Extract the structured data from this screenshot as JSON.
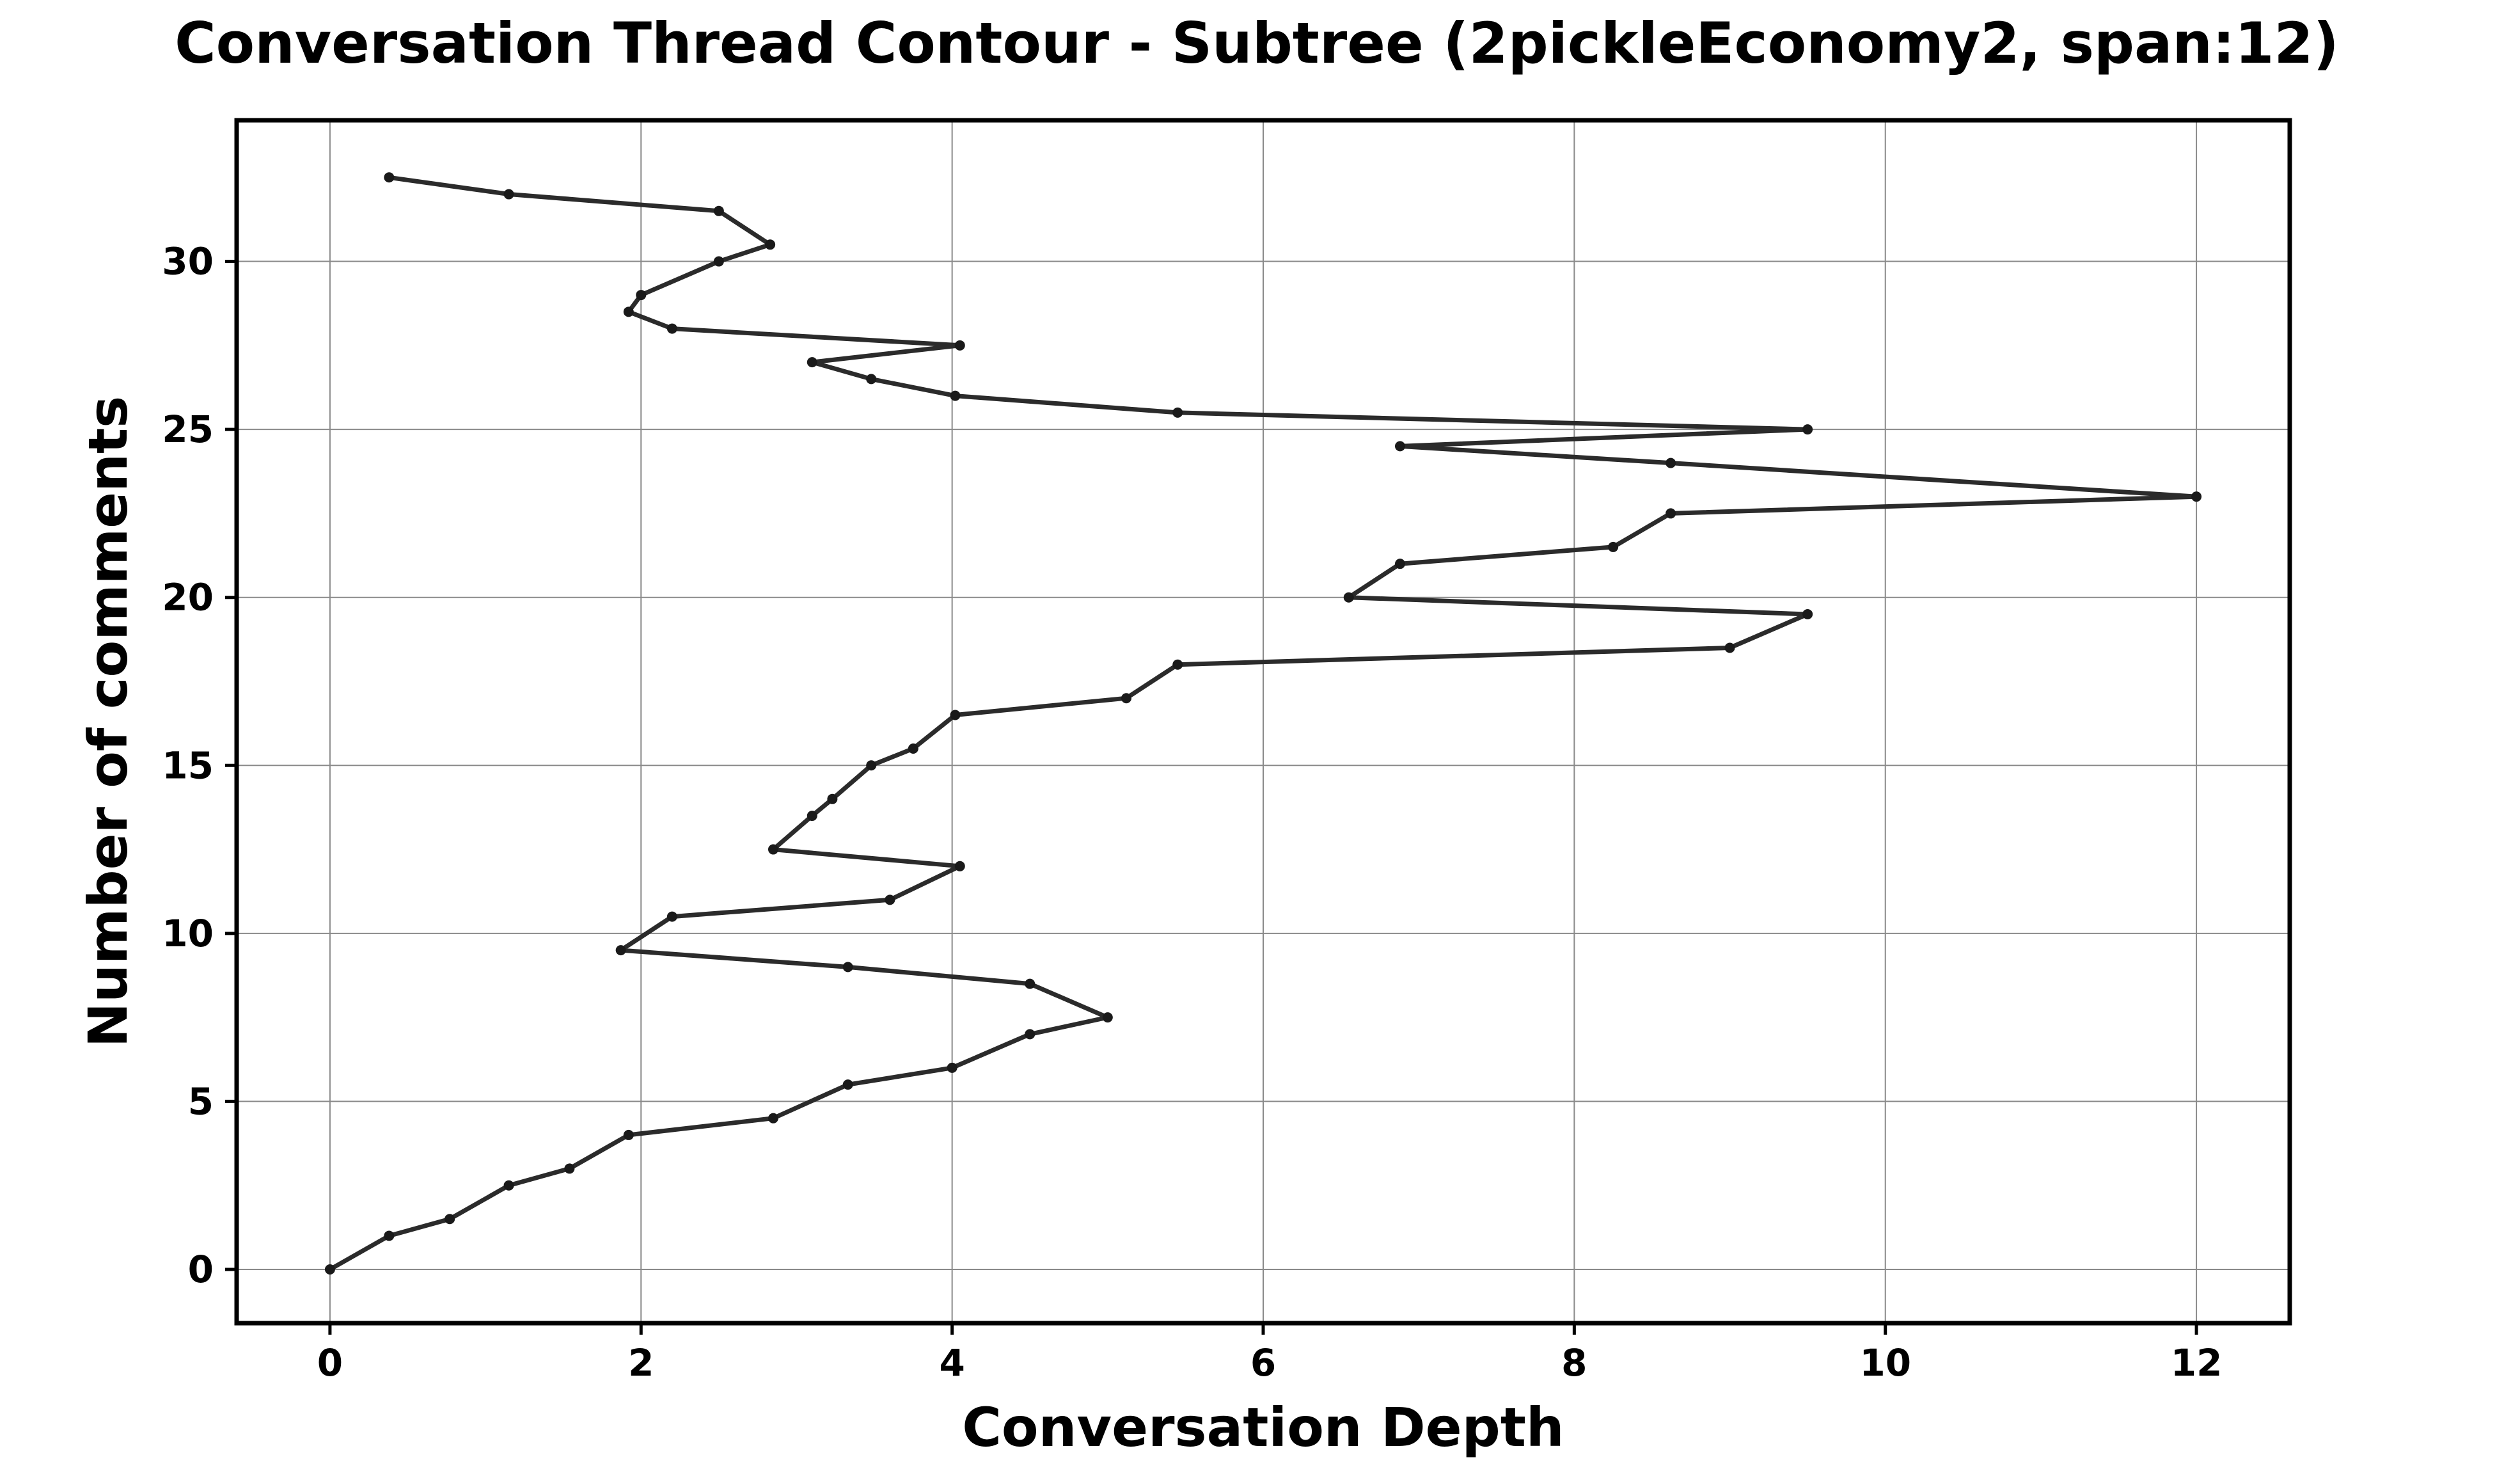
{
  "chart_data": {
    "type": "line",
    "title": "Conversation Thread Contour  - Subtree (2pickleEconomy2, span:12)",
    "xlabel": "Conversation Depth",
    "ylabel": "Number of comments",
    "xlim": [
      -0.6,
      12.6
    ],
    "ylim": [
      -1.6,
      34.2
    ],
    "xticks": [
      0,
      2,
      4,
      6,
      8,
      10,
      12
    ],
    "yticks": [
      0,
      5,
      10,
      15,
      20,
      25,
      30
    ],
    "grid": true,
    "legend": "none",
    "colors": {
      "line": "#2b2b2b",
      "marker": "#1a1a1a",
      "grid": "#8a8a8a"
    },
    "series": [
      {
        "x": [
          0,
          0.38,
          0.77,
          1.15,
          1.54,
          1.92,
          2.85,
          3.33,
          4.0,
          4.5,
          5.0,
          4.5,
          3.33,
          1.87,
          2.2,
          3.6,
          4.05,
          2.85,
          3.1,
          3.23,
          3.48,
          3.75,
          4.02,
          5.12,
          5.45,
          9.0,
          9.5,
          6.55,
          6.88,
          8.25,
          8.62,
          12.0,
          8.62,
          6.88,
          9.5,
          5.45,
          4.02,
          3.48,
          3.1,
          4.05,
          2.2,
          1.92,
          2.0,
          2.5,
          2.83,
          2.5,
          1.15,
          0.38
        ],
        "y": [
          0,
          1,
          1.5,
          2.5,
          3,
          4,
          4.5,
          5.5,
          6,
          7,
          7.5,
          8.5,
          9,
          9.5,
          10.5,
          11,
          12,
          12.5,
          13.5,
          14,
          15,
          15.5,
          16.5,
          17,
          18,
          18.5,
          19.5,
          20,
          21,
          21.5,
          22.5,
          23,
          24,
          24.5,
          25,
          25.5,
          26,
          26.5,
          27,
          27.5,
          28,
          28.5,
          29,
          30,
          30.5,
          31.5,
          32,
          32.5
        ]
      }
    ]
  }
}
